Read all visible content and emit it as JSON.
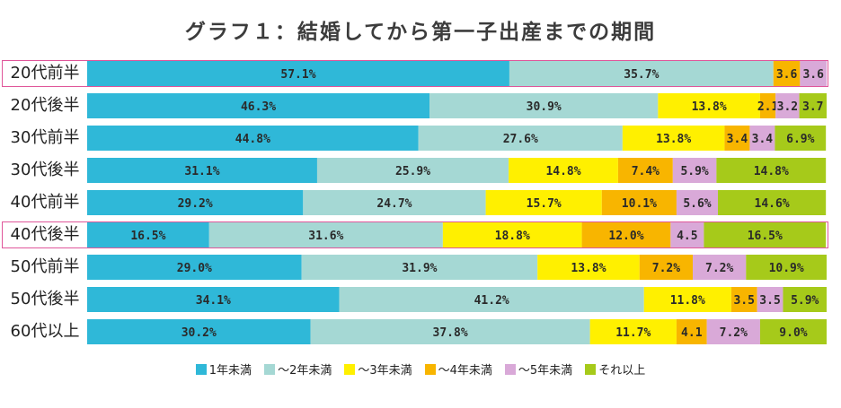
{
  "chart_data": {
    "type": "bar",
    "title": "グラフ１：結婚してから第一子出産までの期間",
    "xlabel": "",
    "ylabel": "",
    "stacked": true,
    "orientation": "horizontal",
    "xlim": [
      0,
      100
    ],
    "grid": false,
    "legend_position": "bottom",
    "categories": [
      "20代前半",
      "20代後半",
      "30代前半",
      "30代後半",
      "40代前半",
      "40代後半",
      "50代前半",
      "50代後半",
      "60代以上"
    ],
    "highlighted_categories": [
      "20代前半",
      "40代後半"
    ],
    "highlight_color": "#e0569a",
    "series": [
      {
        "name": "1年未満",
        "color": "#2fb8d8",
        "values": [
          57.1,
          46.3,
          44.8,
          31.1,
          29.2,
          16.5,
          29.0,
          34.1,
          30.2
        ],
        "labels": [
          "57.1%",
          "46.3%",
          "44.8%",
          "31.1%",
          "29.2%",
          "16.5%",
          "29.0%",
          "34.1%",
          "30.2%"
        ]
      },
      {
        "name": "～2年未満",
        "color": "#a5d8d4",
        "values": [
          35.7,
          30.9,
          27.6,
          25.9,
          24.7,
          31.6,
          31.9,
          41.2,
          37.8
        ],
        "labels": [
          "35.7%",
          "30.9%",
          "27.6%",
          "25.9%",
          "24.7%",
          "31.6%",
          "31.9%",
          "41.2%",
          "37.8%"
        ]
      },
      {
        "name": "～3年未満",
        "color": "#fff000",
        "values": [
          0,
          13.8,
          13.8,
          14.8,
          15.7,
          18.8,
          13.8,
          11.8,
          11.7
        ],
        "labels": [
          "",
          "13.8%",
          "13.8%",
          "14.8%",
          "15.7%",
          "18.8%",
          "13.8%",
          "11.8%",
          "11.7%"
        ]
      },
      {
        "name": "～4年未満",
        "color": "#f8b500",
        "values": [
          3.6,
          2.1,
          3.4,
          7.4,
          10.1,
          12.0,
          7.2,
          3.5,
          4.1
        ],
        "labels": [
          "3.6",
          "2.1",
          "3.4",
          "7.4%",
          "10.1%",
          "12.0%",
          "7.2%",
          "3.5",
          "4.1"
        ]
      },
      {
        "name": "～5年未満",
        "color": "#d9a9d8",
        "values": [
          3.6,
          3.2,
          3.4,
          5.9,
          5.6,
          4.5,
          7.2,
          3.5,
          7.2
        ],
        "labels": [
          "3.6",
          "3.2",
          "3.4",
          "5.9%",
          "5.6%",
          "4.5",
          "7.2%",
          "3.5",
          "7.2%"
        ]
      },
      {
        "name": "それ以上",
        "color": "#a6ca1a",
        "values": [
          0,
          3.7,
          6.9,
          14.8,
          14.6,
          16.5,
          10.9,
          5.9,
          9.0
        ],
        "labels": [
          "",
          "3.7",
          "6.9%",
          "14.8%",
          "14.6%",
          "16.5%",
          "10.9%",
          "5.9%",
          "9.0%"
        ]
      }
    ]
  }
}
